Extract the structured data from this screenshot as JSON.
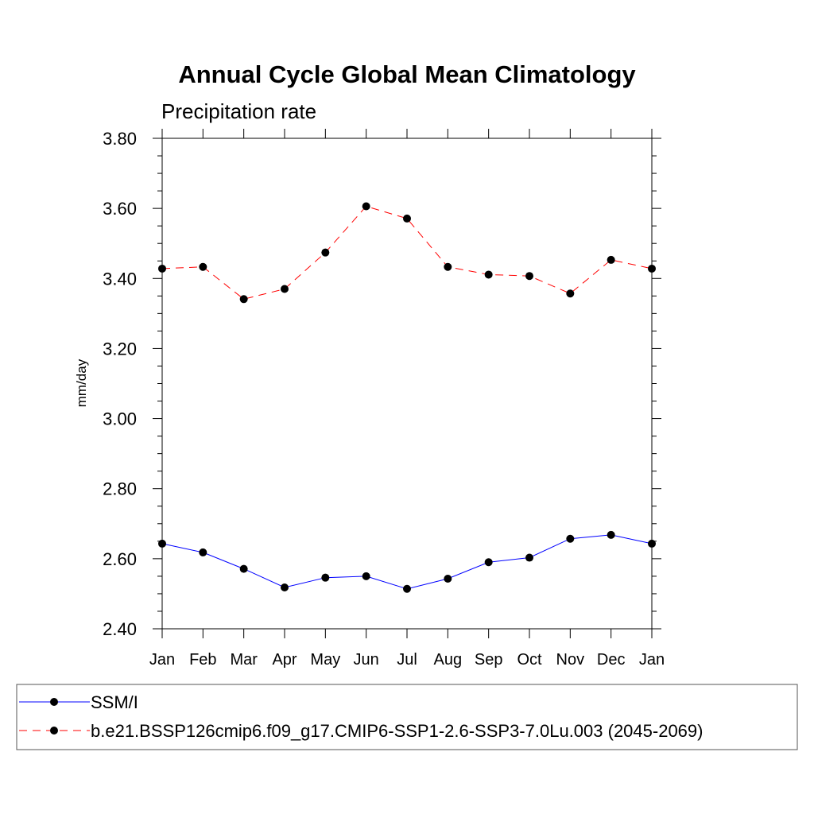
{
  "chart_data": {
    "type": "line",
    "title": "Annual Cycle Global Mean Climatology",
    "subtitle": "Precipitation rate",
    "xlabel": "",
    "ylabel": "mm/day",
    "categories": [
      "Jan",
      "Feb",
      "Mar",
      "Apr",
      "May",
      "Jun",
      "Jul",
      "Aug",
      "Sep",
      "Oct",
      "Nov",
      "Dec",
      "Jan"
    ],
    "ylim": [
      2.4,
      3.8
    ],
    "yticks": [
      "2.40",
      "2.60",
      "2.80",
      "3.00",
      "3.20",
      "3.40",
      "3.60",
      "3.80"
    ],
    "grid": false,
    "legend_position": "bottom",
    "series": [
      {
        "name": "SSM/I",
        "color": "#0000ff",
        "line_style": "solid",
        "marker": "filled-circle",
        "values": [
          2.643,
          2.618,
          2.571,
          2.518,
          2.546,
          2.55,
          2.514,
          2.543,
          2.59,
          2.603,
          2.657,
          2.668,
          2.643
        ]
      },
      {
        "name": "b.e21.BSSP126cmip6.f09_g17.CMIP6-SSP1-2.6-SSP3-7.0Lu.003 (2045-2069)",
        "color": "#ff0000",
        "line_style": "dashed",
        "marker": "filled-circle",
        "values": [
          3.428,
          3.433,
          3.341,
          3.37,
          3.474,
          3.606,
          3.571,
          3.433,
          3.411,
          3.407,
          3.357,
          3.453,
          3.428
        ]
      }
    ]
  }
}
